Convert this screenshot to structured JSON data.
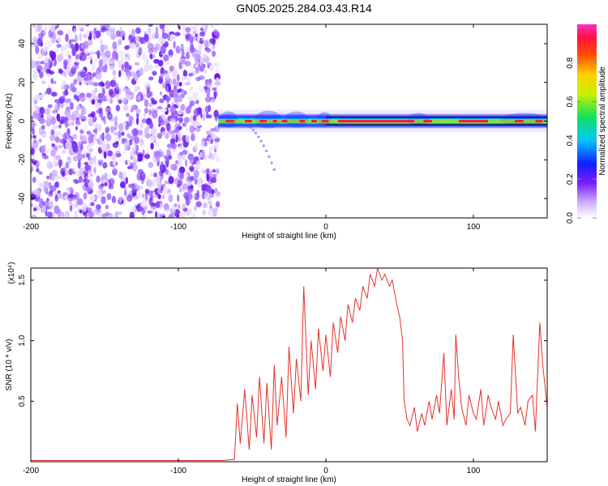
{
  "title": "GN05.2025.284.03.43.R14",
  "chart_data": [
    {
      "type": "heatmap",
      "xlabel": "Height of straight line (km)",
      "ylabel": "Frequency (Hz)",
      "xlim": [
        -200,
        150
      ],
      "ylim": [
        -50,
        50
      ],
      "xticks": [
        -200,
        -100,
        0,
        100
      ],
      "yticks": [
        -40,
        -20,
        0,
        20,
        40
      ],
      "grid": false,
      "colorbar": {
        "label": "Normalized spectral amplitude",
        "range": [
          0.0,
          1.0
        ],
        "ticks": [
          0.0,
          0.2,
          0.4,
          0.6,
          0.8
        ],
        "tick_labels": [
          "0.0",
          "0.2",
          "0.4",
          "0.6",
          "0.8"
        ]
      },
      "features": {
        "noise_region_x": [
          -200,
          -73
        ],
        "signal_band_x": [
          -73,
          150
        ],
        "signal_band_center_hz": 0,
        "branch_x": [
          -60,
          -35
        ],
        "branch_y": [
          0,
          -25
        ]
      }
    },
    {
      "type": "line",
      "xlabel": "Height of straight line (km)",
      "ylabel": "SNR (10 * v/v)",
      "scale_label": "(x10⁴)",
      "xlim": [
        -200,
        150
      ],
      "ylim": [
        0,
        1.6
      ],
      "xticks": [
        -200,
        -100,
        0,
        100
      ],
      "yticks": [
        0.5,
        1.0,
        1.5
      ],
      "ytick_labels": [
        "0.5",
        "1.0",
        "1.5"
      ],
      "grid": false,
      "series": [
        {
          "color": "#e8302a",
          "x": [
            -200,
            -150,
            -100,
            -70,
            -62,
            -60,
            -58,
            -55,
            -52,
            -50,
            -47,
            -45,
            -42,
            -40,
            -37,
            -35,
            -33,
            -30,
            -27,
            -25,
            -22,
            -20,
            -17,
            -15,
            -12,
            -10,
            -7,
            -5,
            -2,
            0,
            3,
            5,
            8,
            10,
            13,
            15,
            18,
            20,
            23,
            25,
            28,
            30,
            33,
            35,
            38,
            40,
            43,
            45,
            48,
            50,
            52,
            53,
            55,
            57,
            60,
            62,
            65,
            67,
            70,
            72,
            75,
            77,
            80,
            82,
            85,
            87,
            88,
            90,
            92,
            95,
            97,
            100,
            102,
            105,
            107,
            110,
            112,
            115,
            117,
            120,
            122,
            125,
            127,
            130,
            132,
            135,
            137,
            140,
            142,
            145,
            147,
            150
          ],
          "y": [
            0.01,
            0.01,
            0.01,
            0.01,
            0.02,
            0.48,
            0.15,
            0.6,
            0.1,
            0.55,
            0.2,
            0.7,
            0.15,
            0.65,
            0.1,
            0.8,
            0.3,
            0.7,
            0.2,
            0.95,
            0.4,
            0.85,
            0.5,
            1.45,
            0.55,
            1.0,
            0.6,
            1.1,
            0.75,
            1.05,
            0.7,
            1.15,
            0.9,
            1.2,
            1.0,
            1.3,
            1.15,
            1.35,
            1.25,
            1.45,
            1.35,
            1.55,
            1.45,
            1.6,
            1.5,
            1.55,
            1.45,
            1.5,
            1.3,
            1.2,
            1.0,
            0.5,
            0.35,
            0.3,
            0.45,
            0.25,
            0.4,
            0.3,
            0.5,
            0.35,
            0.55,
            0.4,
            0.9,
            0.3,
            0.6,
            0.35,
            1.05,
            0.7,
            0.45,
            0.3,
            0.55,
            0.4,
            0.35,
            0.6,
            0.3,
            0.55,
            0.45,
            0.35,
            0.5,
            0.3,
            0.35,
            0.4,
            1.05,
            0.4,
            0.45,
            0.3,
            0.5,
            0.55,
            0.25,
            1.15,
            0.8,
            0.45
          ]
        }
      ]
    }
  ]
}
